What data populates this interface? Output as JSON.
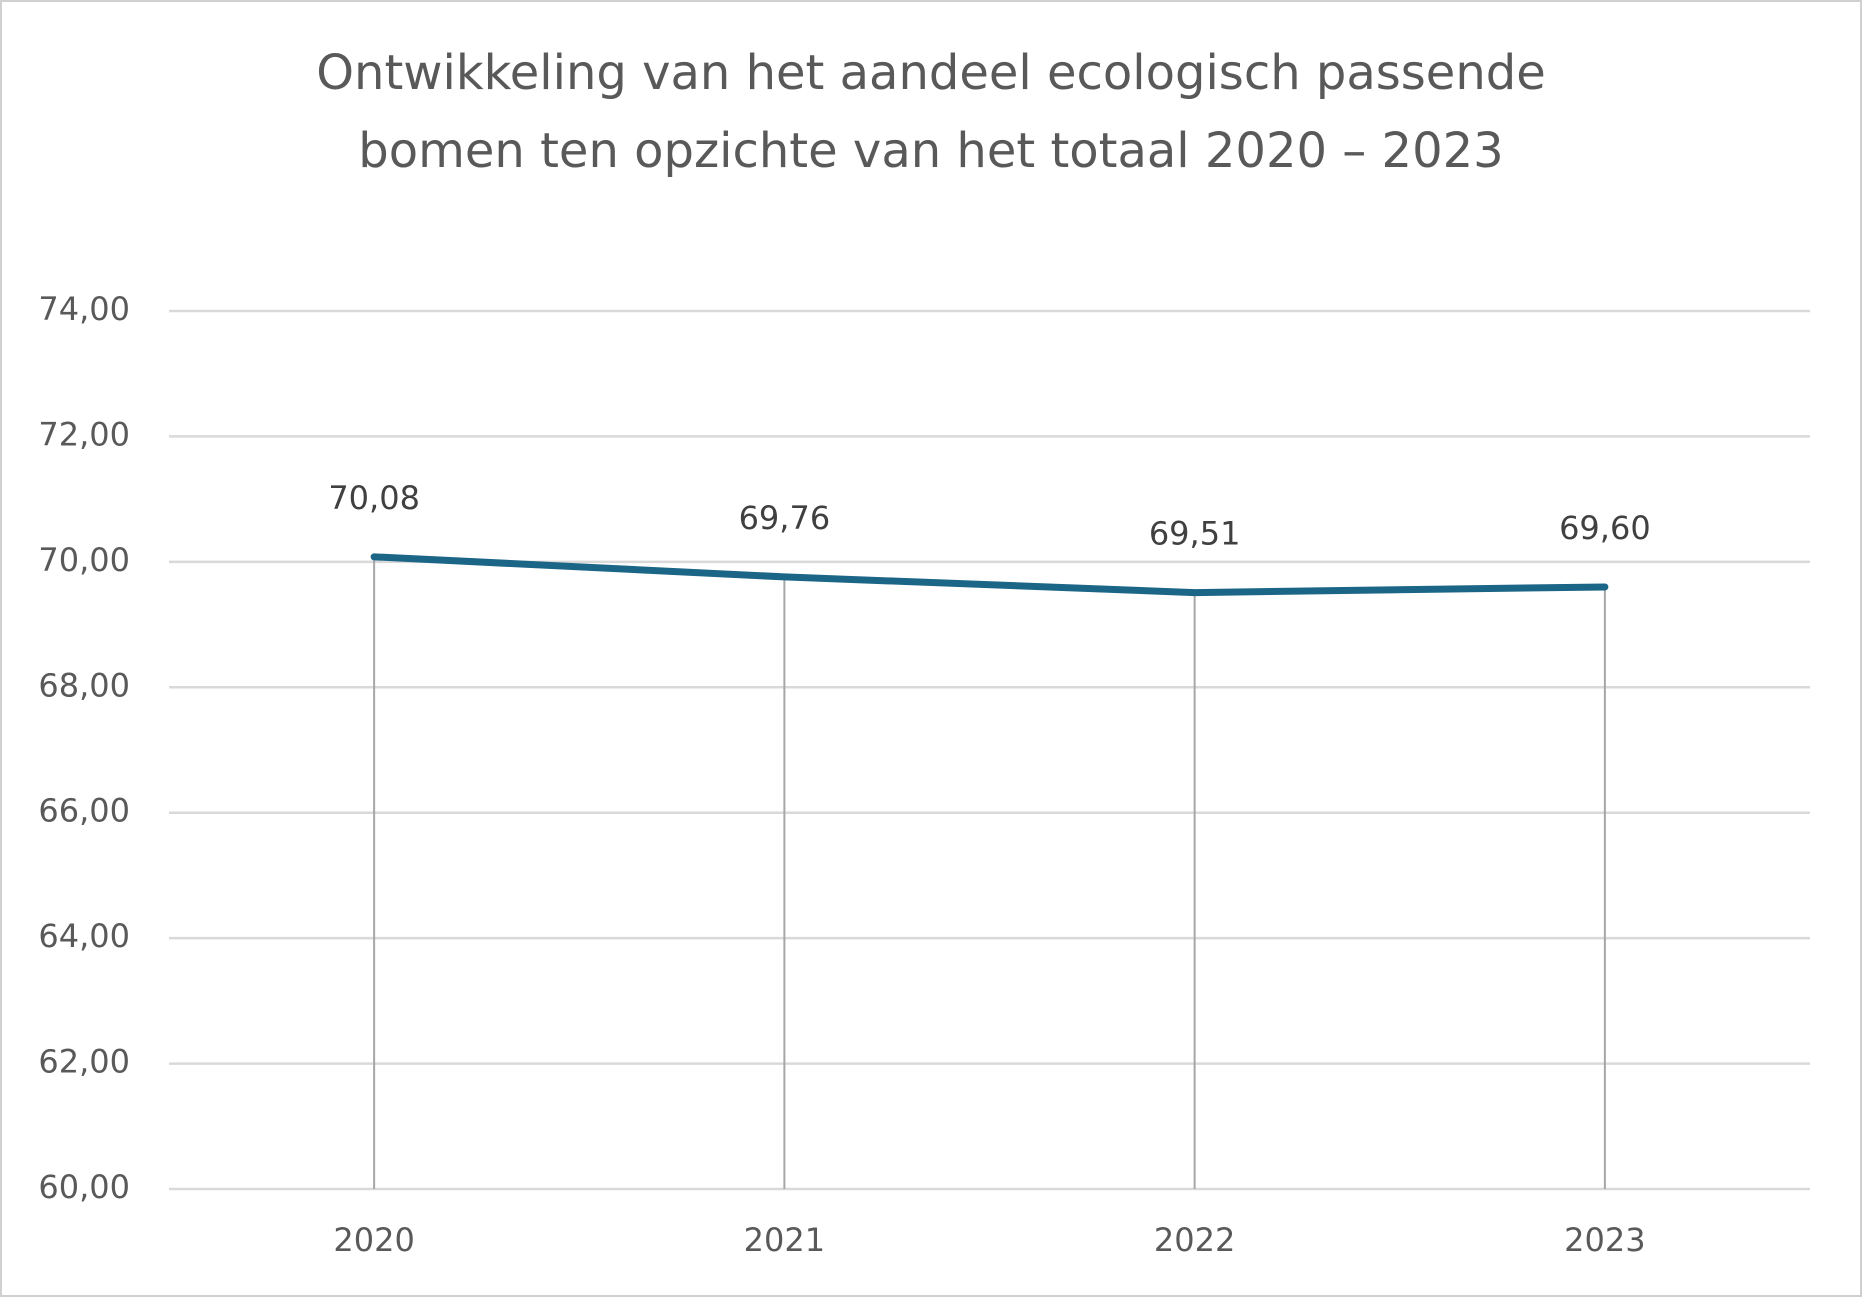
{
  "chart_data": {
    "type": "line",
    "title": [
      "Ontwikkeling van het aandeel ecologisch passende",
      "bomen ten opzichte van het totaal 2020 – 2023"
    ],
    "categories": [
      "2020",
      "2021",
      "2022",
      "2023"
    ],
    "values": [
      70.08,
      69.76,
      69.51,
      69.6
    ],
    "value_labels": [
      "70,08",
      "69,76",
      "69,51",
      "69,60"
    ],
    "color": "#1b6587",
    "ylim": [
      60,
      74
    ],
    "yticks": [
      {
        "value": 60,
        "label": "60,00"
      },
      {
        "value": 62,
        "label": "62,00"
      },
      {
        "value": 64,
        "label": "64,00"
      },
      {
        "value": 66,
        "label": "66,00"
      },
      {
        "value": 68,
        "label": "68,00"
      },
      {
        "value": 70,
        "label": "70,00"
      },
      {
        "value": 72,
        "label": "72,00"
      },
      {
        "value": 74,
        "label": "74,00"
      }
    ],
    "grid": true,
    "drop_lines": true
  }
}
